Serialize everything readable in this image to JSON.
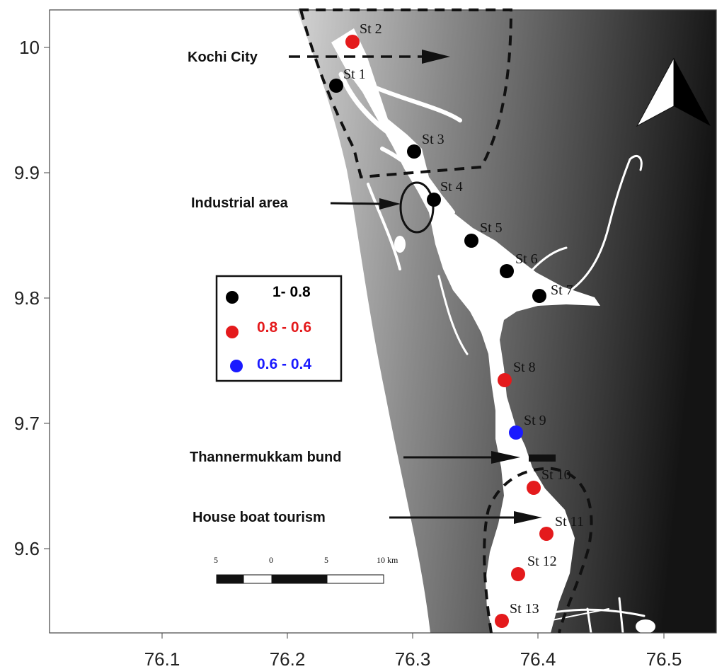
{
  "axes": {
    "x_ticks": [
      "76.1",
      "76.2",
      "76.3",
      "76.4",
      "76.5"
    ],
    "y_ticks": [
      "10",
      "9.9",
      "9.8",
      "9.7",
      "9.6"
    ]
  },
  "stations": [
    {
      "label": "St 1",
      "color": "#000000"
    },
    {
      "label": "St 2",
      "color": "#e41a1c"
    },
    {
      "label": "St 3",
      "color": "#000000"
    },
    {
      "label": "St 4",
      "color": "#000000"
    },
    {
      "label": "St 5",
      "color": "#000000"
    },
    {
      "label": "St 6",
      "color": "#000000"
    },
    {
      "label": "St 7",
      "color": "#000000"
    },
    {
      "label": "St 8",
      "color": "#e41a1c"
    },
    {
      "label": "St 9",
      "color": "#1a1aff"
    },
    {
      "label": "St 10",
      "color": "#e41a1c"
    },
    {
      "label": "St 11",
      "color": "#e41a1c"
    },
    {
      "label": "St 12",
      "color": "#e41a1c"
    },
    {
      "label": "St 13",
      "color": "#e41a1c"
    }
  ],
  "annotations": {
    "kochi_city": "Kochi City",
    "industrial_area": "Industrial area",
    "thannermukkam_bund": "Thannermukkam bund",
    "house_boat_tourism": "House boat tourism"
  },
  "legend": {
    "items": [
      {
        "label": "1- 0.8",
        "color": "#000000"
      },
      {
        "label": "0.8 - 0.6",
        "color": "#e41a1c"
      },
      {
        "label": "0.6 - 0.4",
        "color": "#1a1aff"
      }
    ]
  },
  "scale_bar": {
    "labels": [
      "5",
      "0",
      "5",
      "10 km"
    ]
  },
  "north_arrow": {
    "icon": "north-arrow-icon"
  }
}
